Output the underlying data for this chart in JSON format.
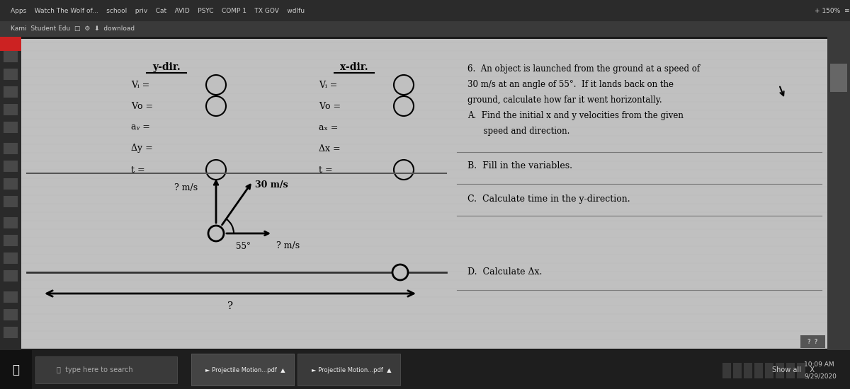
{
  "bg_outer": "#1a1a1a",
  "bg_dark_bar": "#2c2c2c",
  "bg_content": "#bebebe",
  "bg_left_sidebar": "#1f1f1f",
  "bg_toolbar": "#3a3a3a",
  "text_color": "#000000",
  "bar_text_color": "#cccccc",
  "problem_text_lines": [
    "6.  An object is launched from the ground at a speed of",
    "30 m/s at an angle of 55°.  If it lands back on the",
    "ground, calculate how far it went horizontally.",
    "A.  Find the initial x and y velocities from the given",
    "      speed and direction."
  ],
  "step_B": "B.  Fill in the variables.",
  "step_C": "C.  Calculate time in the y-direction.",
  "step_D": "D.  Calculate Δx.",
  "y_dir_label": "y-dir.",
  "x_dir_label": "x-dir.",
  "y_vars": [
    "Vᵢ =",
    "Vᴏ =",
    "aᵧ =",
    "Δy =",
    "t ="
  ],
  "x_vars": [
    "Vᵢ =",
    "Vᴏ =",
    "aₓ =",
    "Δx =",
    "t ="
  ],
  "speed_label": "30 m/s",
  "angle_label": "55°",
  "y_q_label": "? m/s",
  "x_q_label": "? m/s",
  "q_label": "?",
  "top_bar1_text": "Apps    Watch The Wolf of...    school    priv    Cat    AVID    PSYC    COMP 1    TX GOV    wdlfu",
  "top_bar2_text": "Kami  Student Edu  □  ⚙  ⬇  download",
  "bottom_text": "Projectile Motion...pdf    ▲    Projectile Motion...pdf    ▲",
  "time_text": "10:09 AM\n9/29/2020"
}
